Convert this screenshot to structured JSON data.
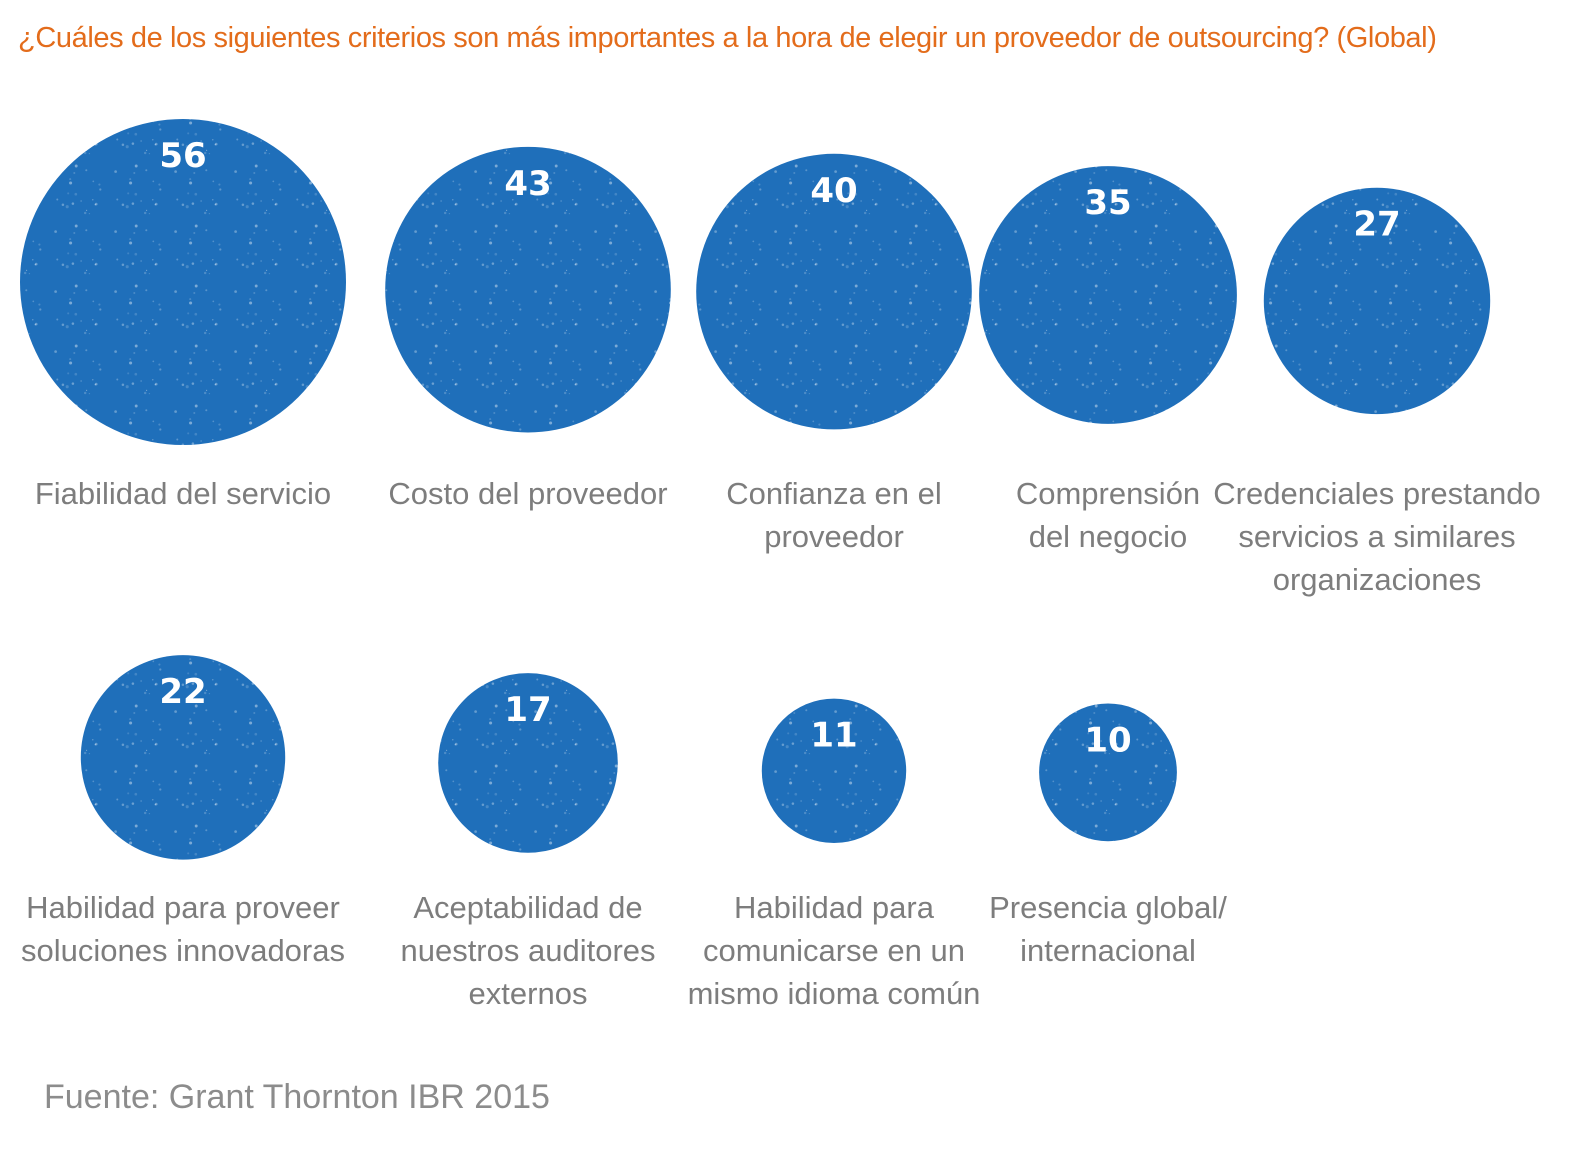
{
  "title": "¿Cuáles de los siguientes criterios son más importantes a la hora de elegir un proveedor de outsourcing? (Global)",
  "source_prefix": "Fuente:",
  "source_name": "Grant Thornton IBR 2015",
  "colors": {
    "bubble": "#1f6fba",
    "title": "#e36c1b",
    "label": "#7d7d7d"
  },
  "chart_data": {
    "type": "bubble",
    "title": "¿Cuáles de los siguientes criterios son más importantes a la hora de elegir un proveedor de outsourcing? (Global)",
    "items": [
      {
        "value": 56,
        "label_lines": [
          "Fiabilidad del servicio"
        ]
      },
      {
        "value": 43,
        "label_lines": [
          "Costo del proveedor"
        ]
      },
      {
        "value": 40,
        "label_lines": [
          "Confianza en el",
          "proveedor"
        ]
      },
      {
        "value": 35,
        "label_lines": [
          "Comprensión",
          "del negocio"
        ]
      },
      {
        "value": 27,
        "label_lines": [
          "Credenciales prestando",
          "servicios a similares",
          "organizaciones"
        ]
      },
      {
        "value": 22,
        "label_lines": [
          "Habilidad para proveer",
          "soluciones innovadoras"
        ]
      },
      {
        "value": 17,
        "label_lines": [
          "Aceptabilidad de",
          "nuestros auditores",
          "externos"
        ]
      },
      {
        "value": 11,
        "label_lines": [
          "Habilidad para",
          "comunicarse en un",
          "mismo idioma común"
        ]
      },
      {
        "value": 10,
        "label_lines": [
          "Presencia global/",
          "internacional"
        ]
      }
    ]
  }
}
